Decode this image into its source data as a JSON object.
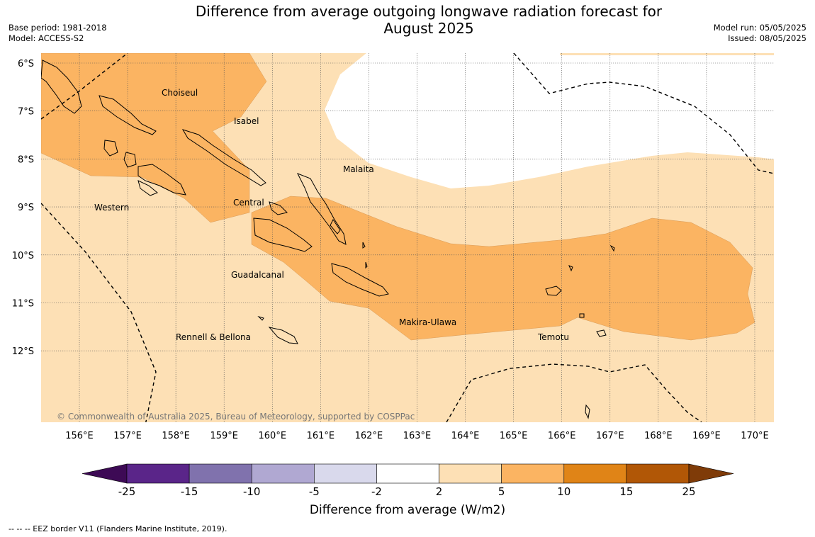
{
  "title_line1": "Difference from average outgoing longwave radiation forecast for",
  "title_line2": "August 2025",
  "meta_left": {
    "base_period": "Base period: 1981-2018",
    "model": "Model: ACCESS-S2"
  },
  "meta_right": {
    "model_run": "Model run: 05/05/2025",
    "issued": "Issued: 08/05/2025"
  },
  "copyright": "© Commonwealth of Australia 2025, Bureau of Meteorology, supported by COSPPac",
  "lat_labels": [
    "6°S",
    "7°S",
    "8°S",
    "9°S",
    "10°S",
    "11°S",
    "12°S"
  ],
  "lon_labels": [
    "156°E",
    "157°E",
    "158°E",
    "159°E",
    "160°E",
    "161°E",
    "162°E",
    "163°E",
    "164°E",
    "165°E",
    "166°E",
    "167°E",
    "168°E",
    "169°E",
    "170°E"
  ],
  "provinces": [
    {
      "name": "Choiseul"
    },
    {
      "name": "Isabel"
    },
    {
      "name": "Malaita"
    },
    {
      "name": "Western"
    },
    {
      "name": "Central"
    },
    {
      "name": "Guadalcanal"
    },
    {
      "name": "Makira-Ulawa"
    },
    {
      "name": "Rennell & Bellona"
    },
    {
      "name": "Temotu"
    }
  ],
  "colorbar": {
    "label": "Difference from average (W/m2)",
    "ticks": [
      "-25",
      "-15",
      "-10",
      "-5",
      "-2",
      "2",
      "5",
      "10",
      "15",
      "25"
    ],
    "colors": [
      "#3d0a55",
      "#5a2589",
      "#8072ad",
      "#b0a8d2",
      "#d9d9ec",
      "#ffffff",
      "#fde0b5",
      "#fbb462",
      "#e08417",
      "#b15706",
      "#7f3b08"
    ]
  },
  "shading_colors": {
    "2_to_5": "#fde0b5",
    "5_to_10": "#fbb462",
    "neutral": "#ffffff"
  },
  "footer": "--  --  -- EEZ border V11 (Flanders Marine Institute, 2019)."
}
